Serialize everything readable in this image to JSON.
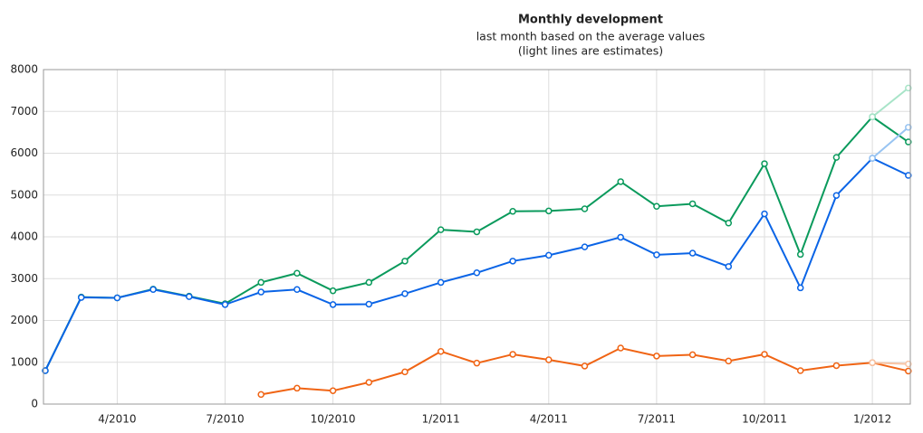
{
  "chart_data": {
    "type": "line",
    "title": "Monthly development",
    "subtitle": [
      "last month based on the average values",
      "(light lines are estimates)"
    ],
    "categories": [
      null,
      null,
      "4/2010",
      null,
      null,
      "7/2010",
      null,
      null,
      "10/2010",
      null,
      null,
      "1/2011",
      null,
      null,
      "4/2011",
      null,
      null,
      "7/2011",
      null,
      null,
      "10/2011",
      null,
      null,
      "1/2012",
      null
    ],
    "series": [
      {
        "color": "#0a9a5c",
        "values": [
          800,
          2560,
          2540,
          2750,
          2580,
          2400,
          2910,
          3130,
          2710,
          2910,
          3420,
          4170,
          4120,
          4610,
          4620,
          4670,
          5320,
          4730,
          4790,
          4330,
          5750,
          3580,
          5900,
          6870,
          6270
        ]
      },
      {
        "color": "#0a64e6",
        "values": [
          800,
          2550,
          2540,
          2740,
          2570,
          2380,
          2680,
          2740,
          2380,
          2390,
          2640,
          2910,
          3140,
          3420,
          3560,
          3760,
          3990,
          3570,
          3610,
          3290,
          4550,
          2780,
          4990,
          5880,
          5470
        ]
      },
      {
        "color": "#f06414",
        "values": [
          null,
          null,
          null,
          null,
          null,
          null,
          230,
          380,
          320,
          520,
          770,
          1260,
          980,
          1190,
          1060,
          910,
          1340,
          1150,
          1180,
          1030,
          1190,
          800,
          920,
          990,
          790
        ]
      },
      {
        "color": "#a8e4c8",
        "values": [
          null,
          null,
          null,
          null,
          null,
          null,
          null,
          null,
          null,
          null,
          null,
          null,
          null,
          null,
          null,
          null,
          null,
          null,
          null,
          null,
          null,
          null,
          null,
          6870,
          7560
        ]
      },
      {
        "color": "#98c4f2",
        "values": [
          null,
          null,
          null,
          null,
          null,
          null,
          null,
          null,
          null,
          null,
          null,
          null,
          null,
          null,
          null,
          null,
          null,
          null,
          null,
          null,
          null,
          null,
          null,
          5880,
          6620
        ]
      },
      {
        "color": "#f8c4a4",
        "values": [
          null,
          null,
          null,
          null,
          null,
          null,
          null,
          null,
          null,
          null,
          null,
          null,
          null,
          null,
          null,
          null,
          null,
          null,
          null,
          null,
          null,
          null,
          null,
          990,
          960
        ]
      }
    ],
    "ylim": [
      0,
      8000
    ],
    "yticks": [
      0,
      1000,
      2000,
      3000,
      4000,
      5000,
      6000,
      7000,
      8000
    ],
    "grid": true
  }
}
